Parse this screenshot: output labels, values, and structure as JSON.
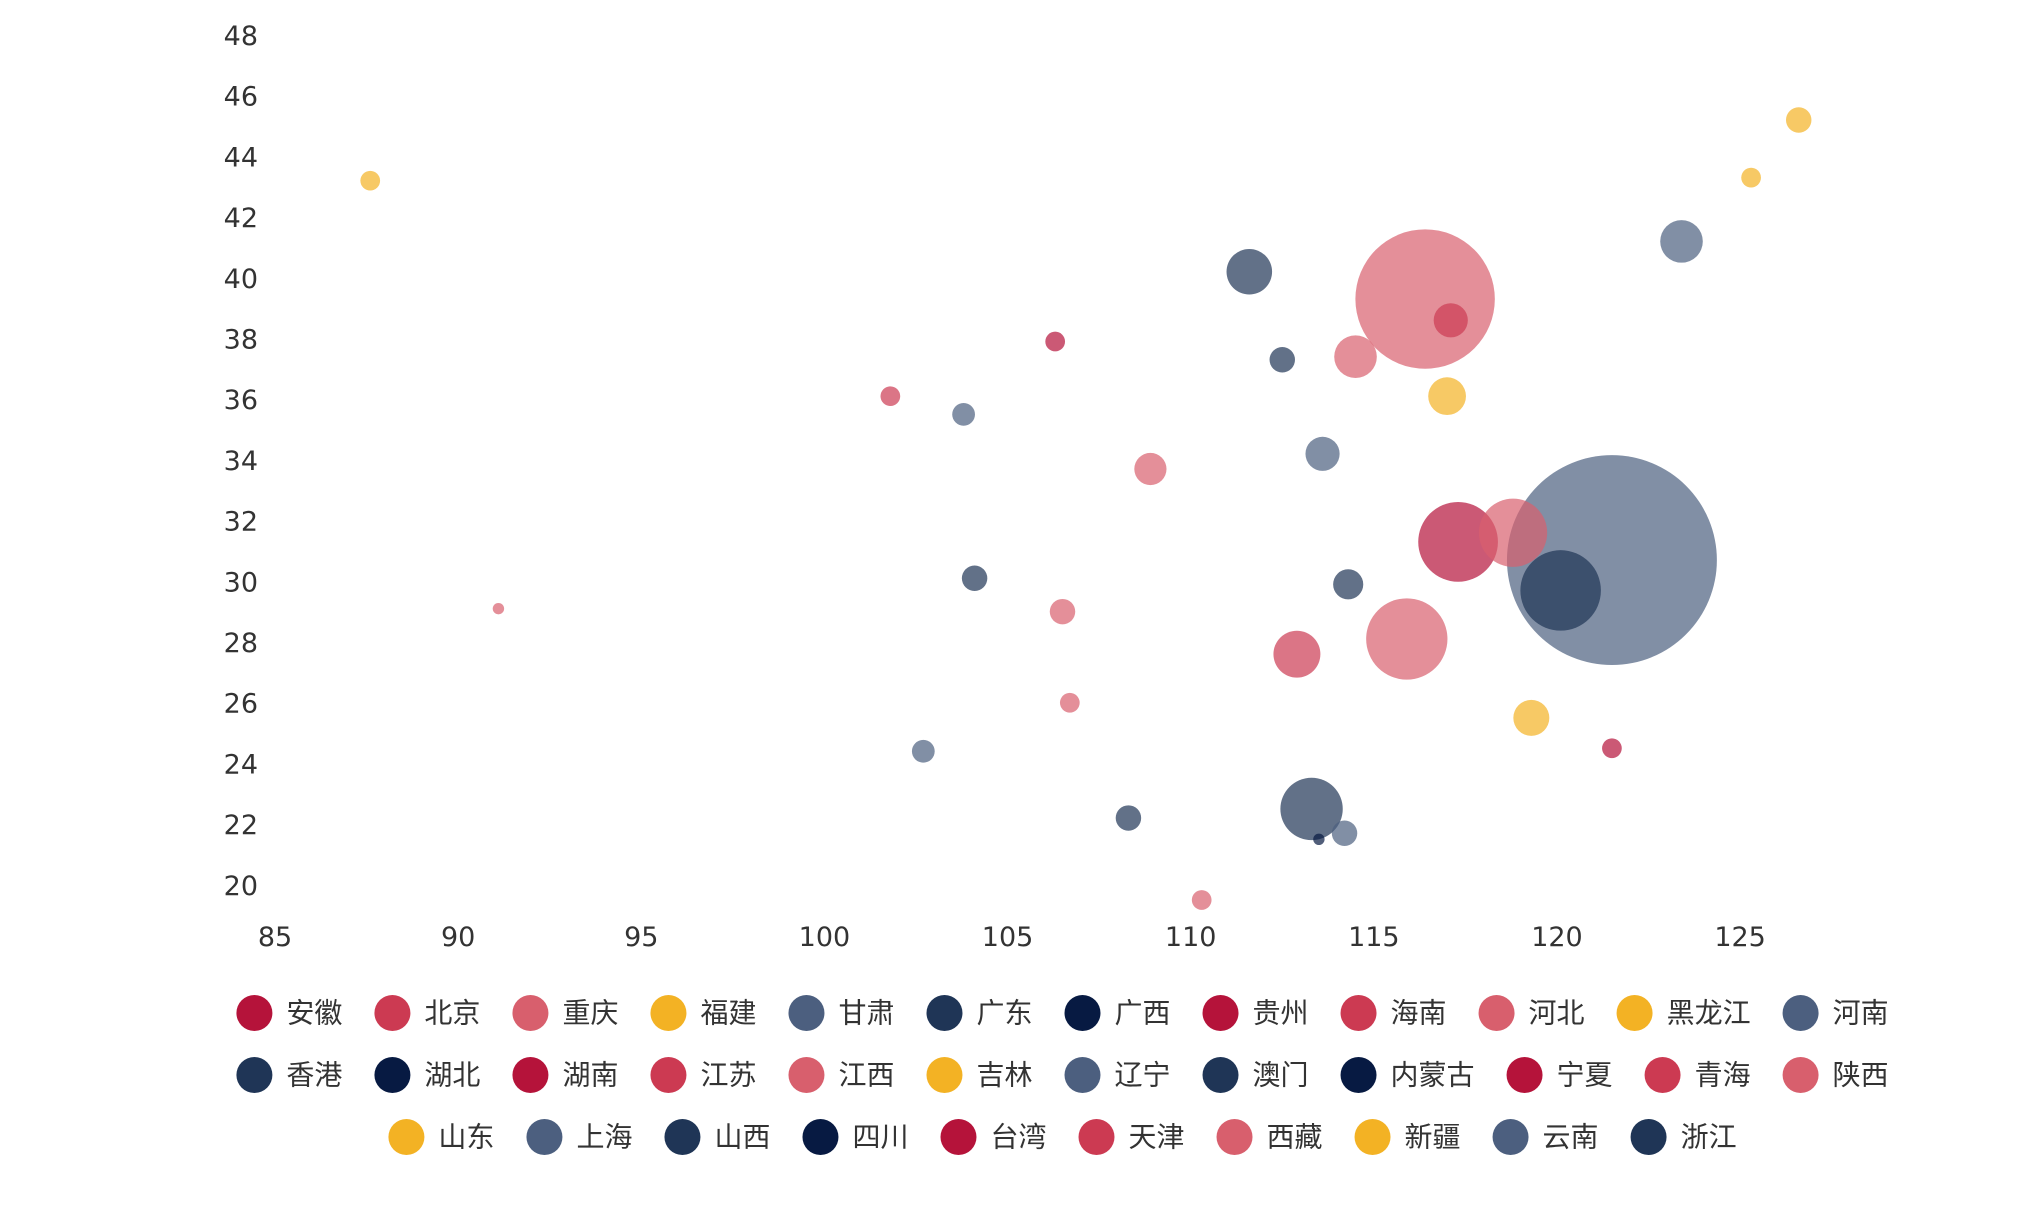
{
  "chart_data": {
    "type": "scatter",
    "variant": "bubble",
    "title": "",
    "xlabel": "",
    "ylabel": "",
    "xlim": [
      85,
      128
    ],
    "ylim": [
      19.5,
      48
    ],
    "x_ticks": [
      "85",
      "90",
      "95",
      "100",
      "105",
      "110",
      "115",
      "120",
      "125"
    ],
    "y_ticks": [
      "20",
      "22",
      "24",
      "26",
      "28",
      "30",
      "32",
      "34",
      "36",
      "38",
      "40",
      "42",
      "44",
      "46",
      "48"
    ],
    "grid": false,
    "legend_position": "bottom",
    "series": [
      {
        "name": "安徽",
        "color": "#b5133a",
        "points": [
          {
            "x": 117.3,
            "y": 31.3,
            "size": 4.9
          }
        ]
      },
      {
        "name": "北京",
        "color": "#cc3a52",
        "points": [
          {
            "x": 117.1,
            "y": 38.6,
            "size": 0.9
          }
        ]
      },
      {
        "name": "重庆",
        "color": "#d85f6d",
        "points": [
          {
            "x": 106.5,
            "y": 29.0,
            "size": 0.5
          },
          {
            "x": 106.7,
            "y": 26.0,
            "size": 0.3
          }
        ]
      },
      {
        "name": "福建",
        "color": "#f3b224",
        "points": [
          {
            "x": 119.3,
            "y": 25.5,
            "size": 1.0
          }
        ]
      },
      {
        "name": "甘肃",
        "color": "#4c5f7f",
        "points": [
          {
            "x": 103.8,
            "y": 35.5,
            "size": 0.4
          }
        ]
      },
      {
        "name": "广东",
        "color": "#1f3556",
        "points": [
          {
            "x": 113.3,
            "y": 22.5,
            "size": 3.0
          },
          {
            "x": 108.3,
            "y": 22.2,
            "size": 0.5
          }
        ]
      },
      {
        "name": "广西",
        "color": "#071a42",
        "points": [
          {
            "x": 113.5,
            "y": 21.5,
            "size": 0.1
          }
        ]
      },
      {
        "name": "贵州",
        "color": "#b5133a",
        "points": [
          {
            "x": 106.3,
            "y": 37.9,
            "size": 0.3
          }
        ]
      },
      {
        "name": "海南",
        "color": "#cc3a52",
        "points": [
          {
            "x": 112.9,
            "y": 27.6,
            "size": 1.7
          }
        ]
      },
      {
        "name": "河北",
        "color": "#d85f6d",
        "points": [
          {
            "x": 116.4,
            "y": 39.3,
            "size": 15.0
          }
        ]
      },
      {
        "name": "黑龙江",
        "color": "#f3b224",
        "points": [
          {
            "x": 126.6,
            "y": 45.2,
            "size": 0.5
          }
        ]
      },
      {
        "name": "河南",
        "color": "#4c5f7f",
        "points": [
          {
            "x": 121.5,
            "y": 30.7,
            "size": 34.0
          }
        ]
      },
      {
        "name": "香港",
        "color": "#1f3556",
        "points": [
          {
            "x": 120.1,
            "y": 29.7,
            "size": 5.0
          }
        ]
      },
      {
        "name": "湖北",
        "color": "#071a42",
        "points": []
      },
      {
        "name": "湖南",
        "color": "#b5133a",
        "points": [
          {
            "x": 121.5,
            "y": 24.5,
            "size": 0.3
          }
        ]
      },
      {
        "name": "江苏",
        "color": "#cc3a52",
        "points": [
          {
            "x": 101.8,
            "y": 36.1,
            "size": 0.3
          }
        ]
      },
      {
        "name": "江西",
        "color": "#d85f6d",
        "points": [
          {
            "x": 118.8,
            "y": 31.6,
            "size": 3.6
          },
          {
            "x": 115.9,
            "y": 28.1,
            "size": 5.1
          },
          {
            "x": 114.5,
            "y": 37.4,
            "size": 1.4
          },
          {
            "x": 108.9,
            "y": 33.7,
            "size": 0.8
          },
          {
            "x": 110.3,
            "y": 19.5,
            "size": 0.3
          },
          {
            "x": 91.1,
            "y": 29.1,
            "size": 0.1
          }
        ]
      },
      {
        "name": "吉林",
        "color": "#f3b224",
        "points": [
          {
            "x": 125.3,
            "y": 43.3,
            "size": 0.3
          },
          {
            "x": 117.0,
            "y": 36.1,
            "size": 1.1
          },
          {
            "x": 87.6,
            "y": 43.2,
            "size": 0.3
          }
        ]
      },
      {
        "name": "辽宁",
        "color": "#4c5f7f",
        "points": [
          {
            "x": 123.4,
            "y": 41.2,
            "size": 1.4
          },
          {
            "x": 113.6,
            "y": 34.2,
            "size": 0.9
          },
          {
            "x": 102.7,
            "y": 24.4,
            "size": 0.4
          }
        ]
      },
      {
        "name": "澳门",
        "color": "#1f3556",
        "points": []
      },
      {
        "name": "内蒙古",
        "color": "#071a42",
        "points": []
      },
      {
        "name": "宁夏",
        "color": "#b5133a",
        "points": []
      },
      {
        "name": "青海",
        "color": "#cc3a52",
        "points": []
      },
      {
        "name": "陕西",
        "color": "#d85f6d",
        "points": []
      },
      {
        "name": "山东",
        "color": "#f3b224",
        "points": []
      },
      {
        "name": "上海",
        "color": "#4c5f7f",
        "points": [
          {
            "x": 114.2,
            "y": 21.7,
            "size": 0.5
          }
        ]
      },
      {
        "name": "山西",
        "color": "#1f3556",
        "points": [
          {
            "x": 111.6,
            "y": 40.2,
            "size": 1.6
          },
          {
            "x": 112.5,
            "y": 37.3,
            "size": 0.5
          },
          {
            "x": 114.3,
            "y": 29.9,
            "size": 0.7
          },
          {
            "x": 104.1,
            "y": 30.1,
            "size": 0.5
          }
        ]
      },
      {
        "name": "四川",
        "color": "#071a42",
        "points": []
      },
      {
        "name": "台湾",
        "color": "#b5133a",
        "points": []
      },
      {
        "name": "天津",
        "color": "#cc3a52",
        "points": []
      },
      {
        "name": "西藏",
        "color": "#d85f6d",
        "points": []
      },
      {
        "name": "新疆",
        "color": "#f3b224",
        "points": []
      },
      {
        "name": "云南",
        "color": "#4c5f7f",
        "points": []
      },
      {
        "name": "浙江",
        "color": "#1f3556",
        "points": []
      }
    ]
  }
}
